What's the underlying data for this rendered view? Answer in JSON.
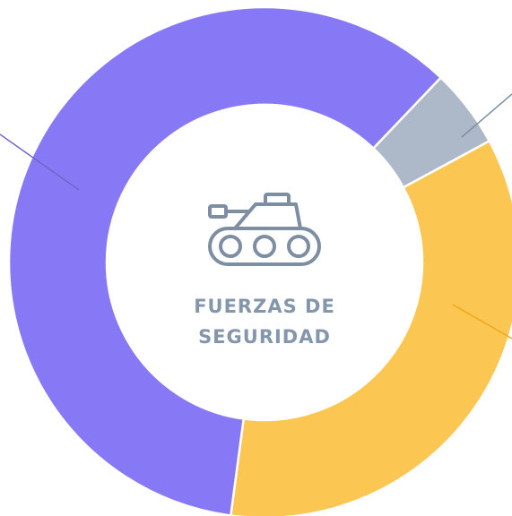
{
  "chart_data": {
    "type": "donut",
    "center_label": "FUERZAS DE SEGURIDAD",
    "categories": [
      null,
      null,
      null
    ],
    "series": [
      {
        "name": null,
        "values": [
          5,
          35,
          60
        ],
        "colors": [
          "#adb8c8",
          "#fbc752",
          "#8779f5"
        ]
      }
    ]
  }
}
